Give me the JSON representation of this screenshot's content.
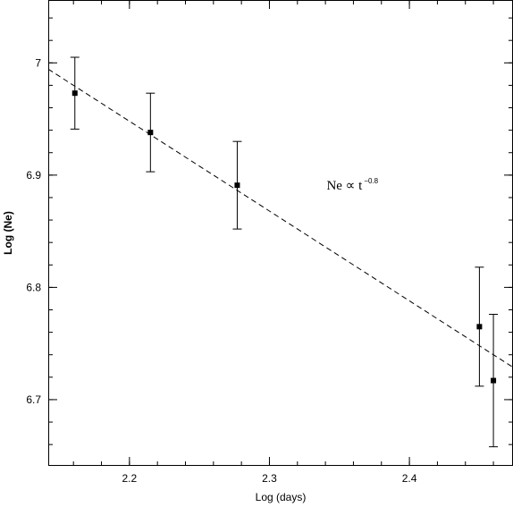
{
  "chart_data": {
    "type": "scatter",
    "xlabel": "Log (days)",
    "ylabel": "Log (Ne)",
    "xlim": [
      2.142,
      2.474
    ],
    "ylim": [
      6.641,
      7.056
    ],
    "xticks": [
      {
        "value": 2.2,
        "label": "2.2"
      },
      {
        "value": 2.3,
        "label": "2.3"
      },
      {
        "value": 2.4,
        "label": "2.4"
      }
    ],
    "yticks": [
      {
        "value": 6.7,
        "label": "6.7"
      },
      {
        "value": 6.8,
        "label": "6.8"
      },
      {
        "value": 6.9,
        "label": "6.9"
      },
      {
        "value": 7.0,
        "label": "7"
      }
    ],
    "x_minor_step": 0.02,
    "y_minor_step": 0.02,
    "points": [
      {
        "x": 2.161,
        "y": 6.973,
        "ylow": 6.941,
        "yhigh": 7.005
      },
      {
        "x": 2.215,
        "y": 6.938,
        "ylow": 6.903,
        "yhigh": 6.973
      },
      {
        "x": 2.277,
        "y": 6.891,
        "ylow": 6.852,
        "yhigh": 6.93
      },
      {
        "x": 2.45,
        "y": 6.765,
        "ylow": 6.712,
        "yhigh": 6.818
      },
      {
        "x": 2.46,
        "y": 6.717,
        "ylow": 6.658,
        "yhigh": 6.776
      }
    ],
    "fit_line": {
      "style": "dashed",
      "slope": -0.8,
      "intercept": 8.708
    },
    "annotation": {
      "text": "Ne ∝ t",
      "superscript": "−0.8",
      "x": 2.36,
      "y": 6.875
    }
  }
}
